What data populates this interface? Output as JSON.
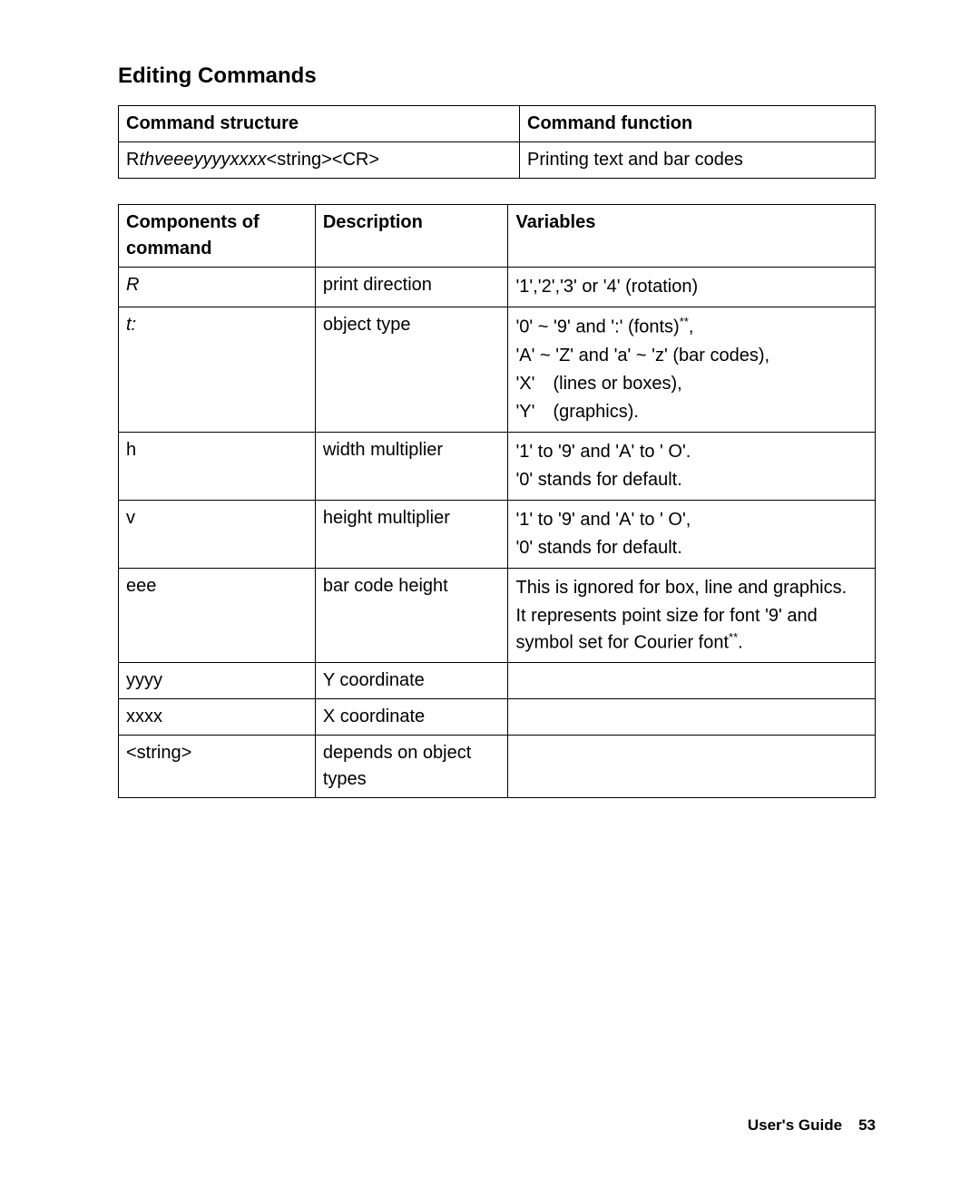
{
  "heading": "Editing Commands",
  "table1": {
    "headers": [
      "Command structure",
      "Command function"
    ],
    "row": {
      "structure_prefix": "R",
      "structure_italic": "thveeeyyyyxxxx",
      "structure_suffix": "<string><CR>",
      "function": "Printing text and bar codes"
    }
  },
  "table2": {
    "headers": [
      "Components of command",
      "Description",
      "Variables"
    ],
    "rows": [
      {
        "comp": "R",
        "comp_italic": true,
        "desc": "print direction",
        "vars": [
          "'1','2','3' or '4' (rotation)"
        ]
      },
      {
        "comp": "t:",
        "comp_italic": true,
        "desc": "object type",
        "vars": [
          "'0' ~ '9' and ':' (fonts)<sup>**</sup>,",
          "'A' ~ 'Z' and 'a' ~ 'z' (bar codes),",
          "'X' (lines or boxes),",
          "'Y' (graphics)."
        ]
      },
      {
        "comp": "h",
        "desc": "width multiplier",
        "vars": [
          "'1' to '9' and  'A' to ' O'.",
          "'0' stands for default."
        ]
      },
      {
        "comp": "v",
        "desc": "height multiplier",
        "vars": [
          "'1' to '9'  and  'A' to ' O',",
          "'0' stands for default."
        ]
      },
      {
        "comp": "eee",
        "desc": "bar code height",
        "vars": [
          "This is ignored for box, line and graphics.",
          "It represents point size for font '9' and symbol set for Courier font<sup>**</sup>."
        ]
      },
      {
        "comp": "yyyy",
        "desc": "Y coordinate",
        "vars": [
          ""
        ]
      },
      {
        "comp": "xxxx",
        "desc": "X coordinate",
        "vars": [
          ""
        ]
      },
      {
        "comp": "<string>",
        "desc": "depends on object types",
        "vars": [
          ""
        ]
      }
    ]
  },
  "footer": {
    "label": "User's Guide",
    "page": "53"
  }
}
